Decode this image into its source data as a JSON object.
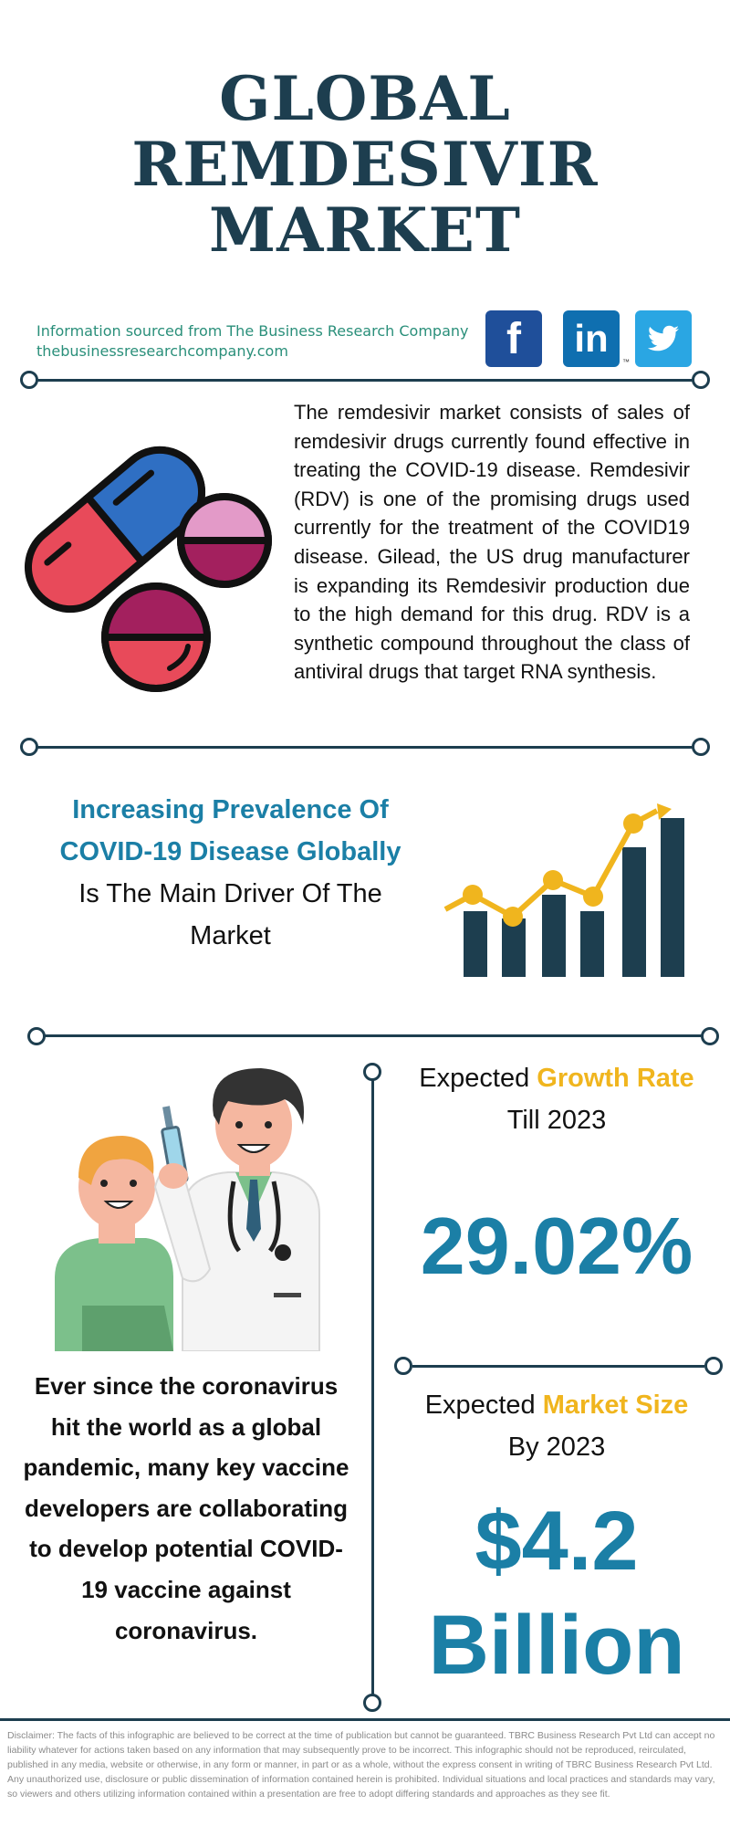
{
  "title": {
    "line1": "GLOBAL",
    "line2": "REMDESIVIR",
    "line3": "MARKET"
  },
  "source": {
    "line1": "Information sourced from The Business Research Company",
    "line2": "thebusinessresearchcompany.com"
  },
  "social": {
    "facebook": "f",
    "linkedin": "in",
    "twitter": "twitter",
    "tm": "™"
  },
  "description": "The remdesivir market consists of sales of remdesivir drugs currently found effective in treating the COVID-19 disease. Remdesivir (RDV) is one of the promising drugs used currently for the treatment of the COVID19 disease. Gilead, the US drug manufacturer is expanding its Remdesivir production due to the high demand for this drug. RDV is a synthetic compound throughout the class of antiviral drugs that target RNA synthesis.",
  "driver": {
    "line1": "Increasing Prevalence Of",
    "line2": "COVID-19 Disease Globally",
    "line3": "Is The Main Driver Of The",
    "line4": "Market"
  },
  "left_text": "Ever since the coronavirus hit the world as a global pandemic, many key vaccine developers are collaborating to develop potential COVID-19 vaccine against coronavirus.",
  "growth": {
    "prefix": "Expected ",
    "highlight": "Growth Rate",
    "line2": "Till 2023",
    "value": "29.02%"
  },
  "market_size": {
    "prefix": "Expected ",
    "highlight": "Market Size",
    "line2": "By 2023",
    "value1": "$4.2",
    "value2": "Billion"
  },
  "disclaimer": "Disclaimer: The facts of this infographic are believed to be correct at the time of publication but cannot be guaranteed. TBRC Business Research Pvt Ltd can accept no liability whatever for actions taken based on any information that may subsequently prove to be incorrect. This infographic should not be reproduced, reirculated, published in any media, website or otherwise, in any form or manner, in part or as a whole, without the express consent in writing of TBRC Business Research Pvt Ltd. Any unauthorized use, disclosure or public dissemination of information contained herein is prohibited. Individual situations and local practices and standards may vary, so viewers and others utilizing information contained within a presentation are free to adopt differing standards and approaches as they see fit.",
  "colors": {
    "navy": "#1d3e4f",
    "teal_blue": "#1b7fa6",
    "yellow": "#f0b51e",
    "green_text": "#2a8f7a"
  },
  "icons": [
    "pills-icon",
    "bar-chart-trend-icon",
    "doctor-vaccine-illustration",
    "facebook-icon",
    "linkedin-icon",
    "twitter-icon"
  ]
}
